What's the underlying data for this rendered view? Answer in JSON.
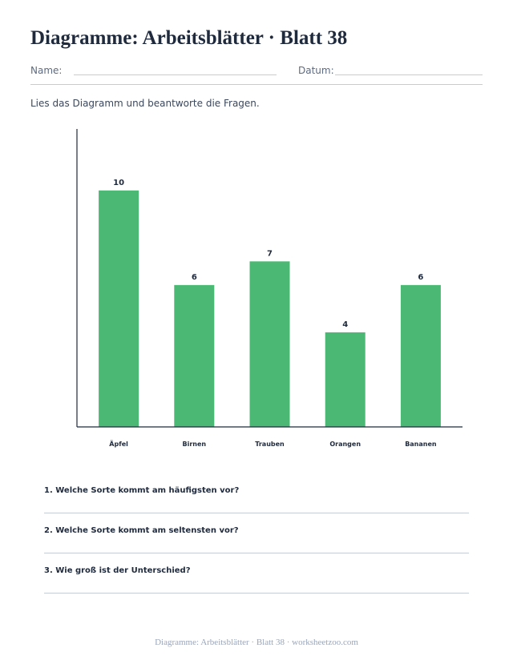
{
  "page": {
    "title": "Diagramme: Arbeitsblätter · Blatt 38",
    "name_label": "Name:",
    "date_label": "Datum:",
    "instruction": "Lies das Diagramm und beantworte die Fragen.",
    "footer": "Diagramme: Arbeitsblätter · Blatt 38 · worksheetzoo.com"
  },
  "questions": [
    "1. Welche Sorte kommt am häufigsten vor?",
    "2. Welche Sorte kommt am seltensten vor?",
    "3. Wie groß ist der Unterschied?"
  ],
  "chart_data": {
    "type": "bar",
    "categories": [
      "Äpfel",
      "Birnen",
      "Trauben",
      "Orangen",
      "Bananen"
    ],
    "values": [
      10,
      6,
      7,
      4,
      6
    ],
    "ylim": [
      0,
      12.6
    ],
    "bar_color": "#4bb873",
    "axis_color": "#1f2a3d",
    "grid": false,
    "legend": "none"
  }
}
